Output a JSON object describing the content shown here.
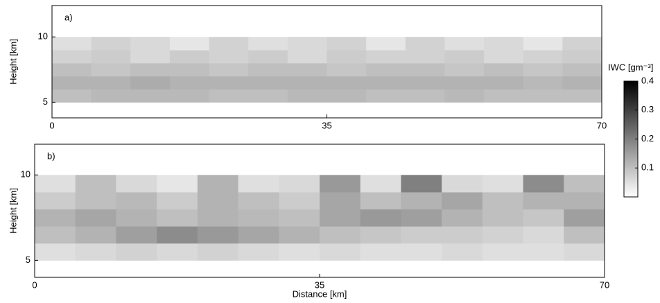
{
  "chart_data": [
    {
      "type": "heatmap",
      "title": "a)",
      "ylabel": "Height [km]",
      "xbins": [
        0,
        5,
        10,
        15,
        20,
        25,
        30,
        35,
        40,
        45,
        50,
        55,
        60,
        65,
        70
      ],
      "ybins": [
        5,
        6,
        7,
        8,
        9,
        10
      ],
      "values": [
        [
          0.1,
          0.11,
          0.11,
          0.11,
          0.1,
          0.1,
          0.11,
          0.11,
          0.1,
          0.1,
          0.11,
          0.1,
          0.1,
          0.1
        ],
        [
          0.12,
          0.12,
          0.13,
          0.12,
          0.12,
          0.12,
          0.12,
          0.12,
          0.12,
          0.12,
          0.12,
          0.12,
          0.11,
          0.12
        ],
        [
          0.1,
          0.09,
          0.1,
          0.1,
          0.09,
          0.1,
          0.1,
          0.09,
          0.1,
          0.1,
          0.09,
          0.1,
          0.09,
          0.1
        ],
        [
          0.07,
          0.08,
          0.06,
          0.08,
          0.07,
          0.08,
          0.06,
          0.08,
          0.07,
          0.07,
          0.08,
          0.06,
          0.07,
          0.08
        ],
        [
          0.05,
          0.07,
          0.06,
          0.04,
          0.07,
          0.05,
          0.06,
          0.07,
          0.04,
          0.07,
          0.05,
          0.06,
          0.04,
          0.07
        ]
      ],
      "xlim": [
        0,
        70
      ],
      "xticks": [
        0,
        35,
        70
      ],
      "ylim": [
        3.8,
        12.4
      ],
      "yticks": [
        5,
        10
      ]
    },
    {
      "type": "heatmap",
      "title": "b)",
      "ylabel": "Height [km]",
      "xlabel": "Distance [km]",
      "xbins": [
        0,
        5,
        10,
        15,
        20,
        25,
        30,
        35,
        40,
        45,
        50,
        55,
        60,
        65,
        70
      ],
      "ybins": [
        5,
        6,
        7,
        8,
        9,
        10
      ],
      "values": [
        [
          0.05,
          0.06,
          0.07,
          0.06,
          0.07,
          0.06,
          0.05,
          0.06,
          0.05,
          0.05,
          0.06,
          0.05,
          0.05,
          0.06
        ],
        [
          0.1,
          0.12,
          0.15,
          0.18,
          0.16,
          0.14,
          0.12,
          0.1,
          0.09,
          0.08,
          0.08,
          0.07,
          0.06,
          0.1
        ],
        [
          0.12,
          0.14,
          0.12,
          0.1,
          0.12,
          0.11,
          0.1,
          0.14,
          0.16,
          0.15,
          0.12,
          0.1,
          0.09,
          0.15
        ],
        [
          0.08,
          0.1,
          0.11,
          0.08,
          0.12,
          0.1,
          0.08,
          0.14,
          0.1,
          0.12,
          0.14,
          0.1,
          0.12,
          0.12
        ],
        [
          0.05,
          0.1,
          0.06,
          0.04,
          0.12,
          0.05,
          0.06,
          0.16,
          0.05,
          0.2,
          0.06,
          0.05,
          0.18,
          0.1
        ]
      ],
      "xlim": [
        0,
        70
      ],
      "xticks": [
        0,
        35,
        70
      ],
      "ylim": [
        4,
        11.8
      ],
      "yticks": [
        5,
        10
      ]
    }
  ],
  "colorbar": {
    "label": "IWC [gm⁻³]",
    "clim": [
      0,
      0.4
    ],
    "ticks": [
      0.1,
      0.2,
      0.3,
      0.4
    ]
  }
}
